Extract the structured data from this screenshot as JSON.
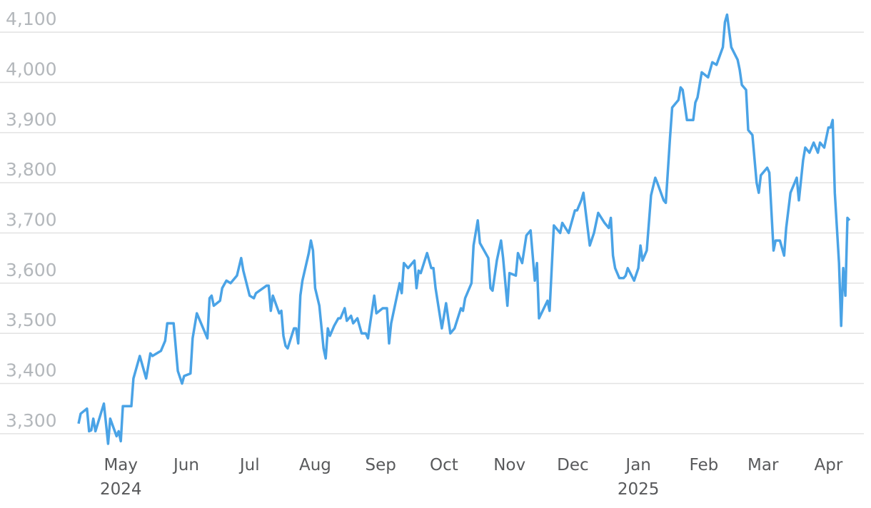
{
  "chart_data": {
    "type": "line",
    "x": [
      0,
      1,
      4,
      5,
      6,
      7,
      8,
      12,
      13,
      14,
      15,
      18,
      19,
      20,
      21,
      25,
      26,
      29,
      32,
      34,
      35,
      39,
      41,
      42,
      45,
      47,
      49,
      50,
      53,
      54,
      56,
      61,
      62,
      63,
      64,
      67,
      68,
      70,
      72,
      75,
      77,
      78,
      81,
      83,
      84,
      89,
      90,
      91,
      92,
      95,
      96,
      97,
      98,
      99,
      102,
      103,
      104,
      105,
      106,
      109,
      110,
      111,
      112,
      114,
      116,
      117,
      118,
      119,
      121,
      123,
      124,
      126,
      127,
      129,
      130,
      132,
      134,
      136,
      137,
      140,
      141,
      144,
      146,
      147,
      148,
      152,
      153,
      154,
      156,
      159,
      160,
      161,
      162,
      165,
      167,
      168,
      169,
      172,
      174,
      176,
      178,
      181,
      182,
      183,
      186,
      187,
      189,
      190,
      194,
      195,
      196,
      198,
      200,
      201,
      203,
      204,
      207,
      208,
      210,
      212,
      214,
      216,
      217,
      218,
      222,
      223,
      225,
      228,
      229,
      232,
      235,
      236,
      238,
      239,
      240,
      242,
      244,
      246,
      249,
      251,
      252,
      253,
      254,
      256,
      258,
      259,
      260,
      263,
      265,
      266,
      267,
      269,
      271,
      273,
      274,
      277,
      278,
      280,
      281,
      284,
      285,
      286,
      288,
      291,
      292,
      293,
      295,
      298,
      300,
      302,
      305,
      306,
      307,
      309,
      312,
      313,
      314,
      316,
      317,
      319,
      321,
      322,
      323,
      326,
      327,
      329,
      330,
      332,
      334,
      335,
      337,
      340,
      341,
      343,
      344,
      346,
      348,
      350,
      351,
      353,
      355,
      356,
      357,
      358,
      360,
      361,
      362,
      363,
      364,
      365
    ],
    "series": [
      {
        "color": "#4aa3e6",
        "values": [
          3320,
          3340,
          3350,
          3305,
          3307,
          3330,
          3305,
          3360,
          3320,
          3280,
          3330,
          3295,
          3305,
          3285,
          3355,
          3355,
          3410,
          3455,
          3410,
          3460,
          3455,
          3465,
          3485,
          3520,
          3520,
          3425,
          3400,
          3415,
          3420,
          3490,
          3540,
          3490,
          3570,
          3575,
          3555,
          3565,
          3590,
          3605,
          3600,
          3615,
          3650,
          3625,
          3575,
          3570,
          3580,
          3595,
          3595,
          3545,
          3575,
          3540,
          3545,
          3495,
          3475,
          3470,
          3510,
          3510,
          3480,
          3575,
          3605,
          3660,
          3685,
          3665,
          3590,
          3555,
          3470,
          3450,
          3510,
          3495,
          3515,
          3530,
          3530,
          3550,
          3525,
          3535,
          3520,
          3530,
          3500,
          3500,
          3490,
          3575,
          3540,
          3550,
          3550,
          3480,
          3520,
          3600,
          3580,
          3640,
          3630,
          3645,
          3590,
          3625,
          3620,
          3660,
          3630,
          3630,
          3590,
          3510,
          3560,
          3500,
          3510,
          3550,
          3545,
          3570,
          3600,
          3675,
          3725,
          3680,
          3650,
          3590,
          3585,
          3645,
          3685,
          3650,
          3555,
          3620,
          3615,
          3660,
          3640,
          3695,
          3705,
          3605,
          3640,
          3530,
          3565,
          3545,
          3715,
          3700,
          3720,
          3700,
          3745,
          3745,
          3765,
          3780,
          3745,
          3675,
          3700,
          3740,
          3720,
          3710,
          3730,
          3655,
          3630,
          3610,
          3610,
          3615,
          3630,
          3605,
          3630,
          3675,
          3645,
          3665,
          3775,
          3810,
          3800,
          3765,
          3760,
          3890,
          3950,
          3965,
          3990,
          3985,
          3925,
          3925,
          3960,
          3970,
          4020,
          4010,
          4040,
          4035,
          4070,
          4120,
          4135,
          4070,
          4045,
          4025,
          3995,
          3985,
          3905,
          3895,
          3800,
          3780,
          3815,
          3830,
          3820,
          3665,
          3685,
          3685,
          3655,
          3710,
          3780,
          3810,
          3765,
          3845,
          3870,
          3860,
          3880,
          3860,
          3880,
          3870,
          3910,
          3910,
          3925,
          3780,
          3640,
          3515,
          3630,
          3575,
          3730,
          3725
        ]
      }
    ],
    "xlim": [
      0,
      365
    ],
    "xticks": [
      {
        "value": 19,
        "label": "May"
      },
      {
        "value": 50,
        "label": "Jun"
      },
      {
        "value": 80,
        "label": "Jul"
      },
      {
        "value": 111,
        "label": "Aug"
      },
      {
        "value": 142,
        "label": "Sep"
      },
      {
        "value": 172,
        "label": "Oct"
      },
      {
        "value": 203,
        "label": "Nov"
      },
      {
        "value": 233,
        "label": "Dec"
      },
      {
        "value": 264,
        "label": "Jan"
      },
      {
        "value": 295,
        "label": "Feb"
      },
      {
        "value": 323,
        "label": "Mar"
      },
      {
        "value": 354,
        "label": "Apr"
      }
    ],
    "year_labels": [
      {
        "value": 19,
        "label": "2024"
      },
      {
        "value": 264,
        "label": "2025"
      }
    ],
    "ylim": [
      3270,
      4140
    ],
    "yticks": [
      {
        "value": 3300,
        "label": "3,300"
      },
      {
        "value": 3400,
        "label": "3,400"
      },
      {
        "value": 3500,
        "label": "3,500"
      },
      {
        "value": 3600,
        "label": "3,600"
      },
      {
        "value": 3700,
        "label": "3,700"
      },
      {
        "value": 3800,
        "label": "3,800"
      },
      {
        "value": 3900,
        "label": "3,900"
      },
      {
        "value": 4000,
        "label": "4,000"
      },
      {
        "value": 4100,
        "label": "4,100"
      }
    ],
    "grid": true
  }
}
